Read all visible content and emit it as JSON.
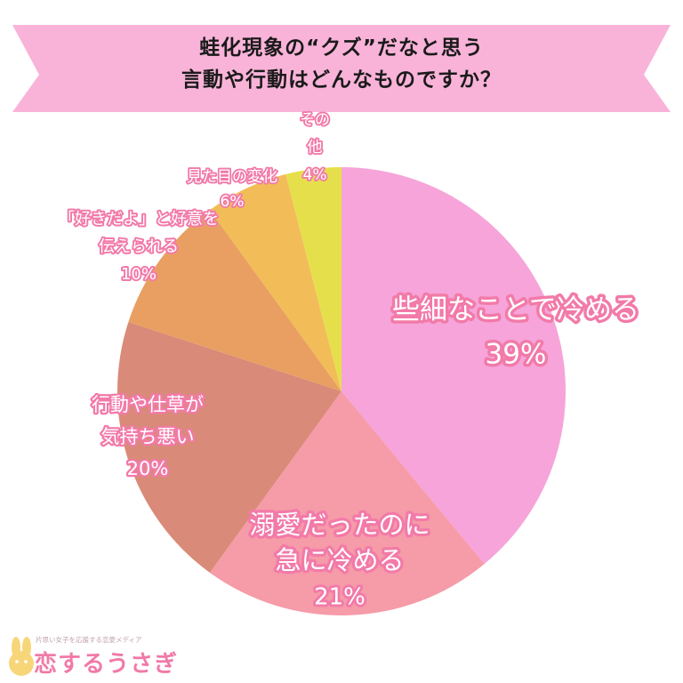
{
  "header": {
    "title_line1": "蛙化現象の“クズ”だなと思う",
    "title_line2": "言動や行動はどんなものですか？"
  },
  "colors": {
    "banner": "#f9b3d8",
    "label_stroke": "#f27aa8",
    "title_text": "#1a1a1a"
  },
  "chart_data": {
    "type": "pie",
    "start_angle_deg": 0,
    "direction": "clockwise",
    "slices": [
      {
        "label_lines": [
          "些細なことで冷める",
          "39%"
        ],
        "value": 39,
        "color": "#f6a4d9"
      },
      {
        "label_lines": [
          "溺愛だったのに",
          "急に冷める",
          "21%"
        ],
        "value": 21,
        "color": "#f69ba8"
      },
      {
        "label_lines": [
          "行動や仕草が",
          "気持ち悪い",
          "20%"
        ],
        "value": 20,
        "color": "#d98a78"
      },
      {
        "label_lines": [
          "「好きだよ」と好意を",
          "伝えられる",
          "10%"
        ],
        "value": 10,
        "color": "#e99f62"
      },
      {
        "label_lines": [
          "見た目の変化",
          "6%"
        ],
        "value": 6,
        "color": "#f2bd58"
      },
      {
        "label_lines": [
          "その",
          "他",
          "4%"
        ],
        "value": 4,
        "color": "#e6df4c"
      }
    ]
  },
  "logo": {
    "tagline": "片思い女子を応援する恋愛メディア",
    "name": "恋するうさぎ",
    "icon": "rabbit-icon"
  }
}
